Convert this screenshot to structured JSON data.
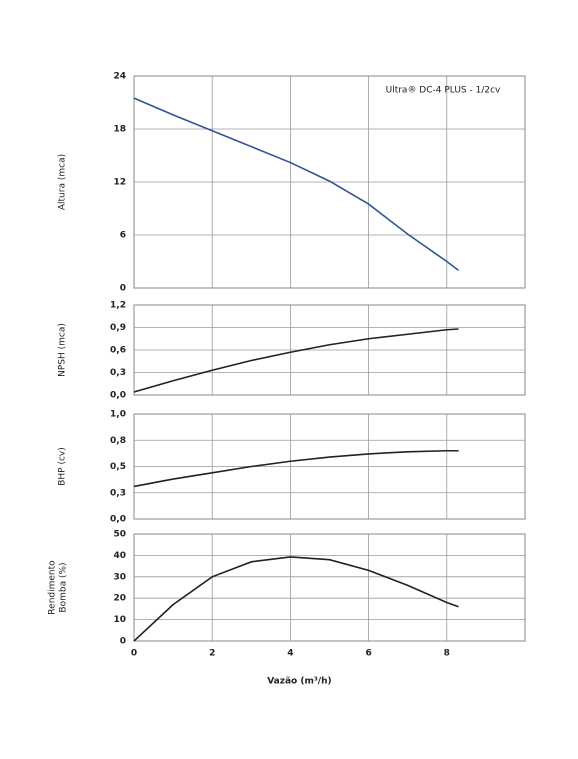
{
  "chart_data": [
    {
      "type": "line",
      "title": "Ultra® DC-4 PLUS - 1/2cv",
      "ylabel": "Altura (mca)",
      "x": [
        0,
        1,
        2,
        3,
        4,
        5,
        6,
        7,
        8,
        8.3
      ],
      "series": [
        {
          "color": "#2f5597",
          "values": [
            21.5,
            19.6,
            17.8,
            16.0,
            14.2,
            12.1,
            9.5,
            6.1,
            3.0,
            2.0
          ]
        }
      ],
      "ylim": [
        0,
        24
      ],
      "yticks": [
        0,
        6,
        12,
        18,
        24
      ],
      "grid": true
    },
    {
      "type": "line",
      "ylabel": "NPSH (mca)",
      "x": [
        0,
        1,
        2,
        3,
        4,
        5,
        6,
        7,
        8,
        8.3
      ],
      "series": [
        {
          "color": "#222222",
          "values": [
            0.04,
            0.19,
            0.33,
            0.46,
            0.57,
            0.67,
            0.75,
            0.81,
            0.87,
            0.88
          ]
        }
      ],
      "ylim": [
        0,
        1.2
      ],
      "yticks": [
        {
          "value": 0,
          "label": "0,0"
        },
        {
          "value": 0.3,
          "label": "0,3"
        },
        {
          "value": 0.6,
          "label": "0,6"
        },
        {
          "value": 0.9,
          "label": "0,9"
        },
        {
          "value": 1.2,
          "label": "1,2"
        }
      ],
      "grid": true
    },
    {
      "type": "line",
      "ylabel": "BHP (cv)",
      "x": [
        0,
        1,
        2,
        3,
        4,
        5,
        6,
        7,
        8,
        8.3
      ],
      "series": [
        {
          "color": "#222222",
          "values": [
            0.31,
            0.38,
            0.44,
            0.5,
            0.55,
            0.59,
            0.62,
            0.64,
            0.65,
            0.65
          ]
        }
      ],
      "ylim": [
        0,
        1
      ],
      "yticks": [
        {
          "value": 0,
          "label": "0,0"
        },
        {
          "value": 0.25,
          "label": "0,3"
        },
        {
          "value": 0.5,
          "label": "0,5"
        },
        {
          "value": 0.75,
          "label": "0,8"
        },
        {
          "value": 1,
          "label": "1,0"
        }
      ],
      "grid": true
    },
    {
      "type": "line",
      "ylabel": [
        "Rendimento",
        "Bomba (%)"
      ],
      "xlabel": "Vazão (m³/h)",
      "x": [
        0,
        1,
        2,
        3,
        4,
        5,
        6,
        7,
        8,
        8.3
      ],
      "series": [
        {
          "color": "#222222",
          "values": [
            0,
            17,
            30,
            37,
            39.3,
            38,
            33,
            26,
            18,
            16
          ]
        }
      ],
      "ylim": [
        0,
        50
      ],
      "yticks": [
        0,
        10,
        20,
        30,
        40,
        50
      ],
      "grid": true,
      "xlim": [
        0,
        10
      ],
      "xticks": [
        0,
        2,
        4,
        6,
        8
      ]
    }
  ]
}
